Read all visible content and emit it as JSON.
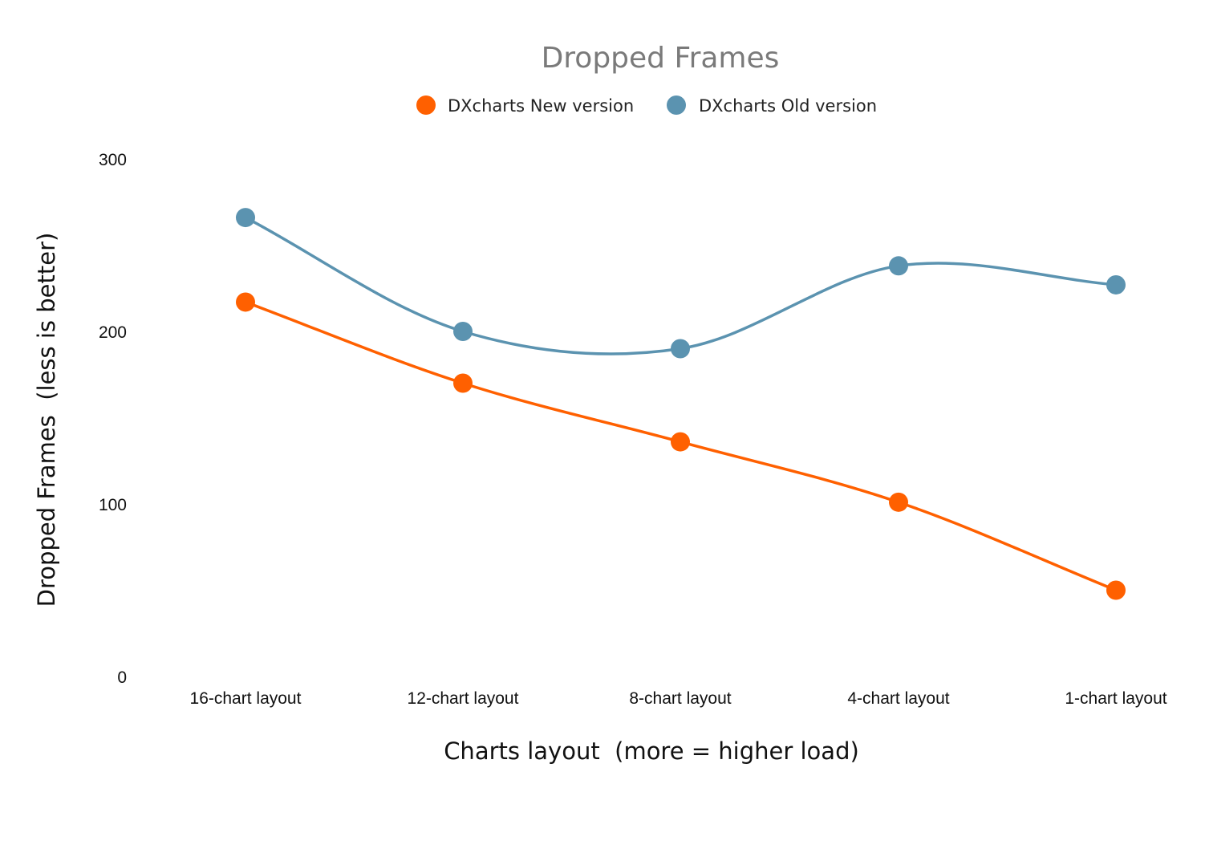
{
  "chart_data": {
    "type": "line",
    "title": "Dropped Frames",
    "xlabel": "Charts layout  (more = higher load)",
    "ylabel": "Dropped Frames  (less is better)",
    "categories": [
      "16-chart layout",
      "12-chart layout",
      "8-chart layout",
      "4-chart layout",
      "1-chart layout"
    ],
    "y_ticks": [
      "0",
      "100",
      "200",
      "300"
    ],
    "ylim": [
      0,
      300
    ],
    "grid": false,
    "legend_position": "top-center",
    "series": [
      {
        "name": "DXcharts New version",
        "color": "#ff6000",
        "values": [
          217,
          170,
          136,
          101,
          50
        ]
      },
      {
        "name": "DXcharts Old version",
        "color": "#5b93b0",
        "values": [
          266,
          200,
          190,
          238,
          227
        ]
      }
    ]
  }
}
